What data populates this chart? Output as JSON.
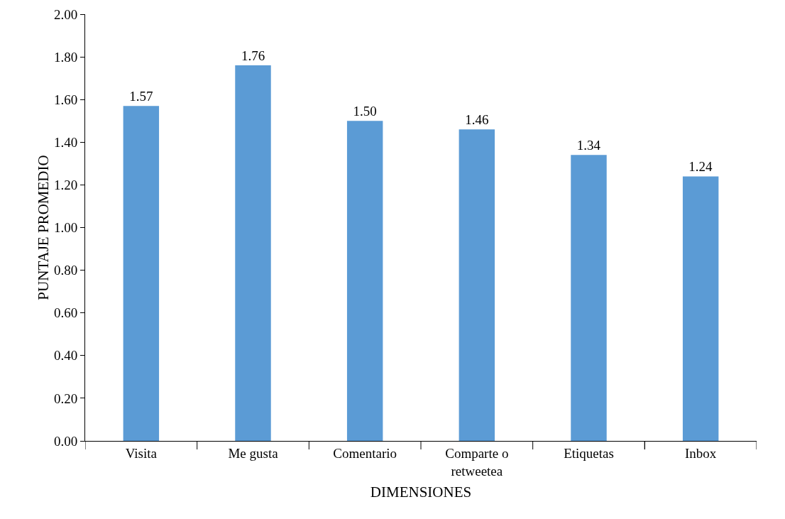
{
  "chart_data": {
    "type": "bar",
    "xlabel": "DIMENSIONES",
    "ylabel": "PUNTAJE PROMEDIO",
    "categories": [
      "Visita",
      "Me gusta",
      "Comentario",
      "Comparte o retweetea",
      "Etiquetas",
      "Inbox"
    ],
    "values": [
      1.57,
      1.76,
      1.5,
      1.46,
      1.34,
      1.24
    ],
    "value_labels": [
      "1.57",
      "1.76",
      "1.50",
      "1.46",
      "1.34",
      "1.24"
    ],
    "color": "#5b9bd5",
    "ylim": [
      0,
      2
    ],
    "yticks": [
      {
        "value": 0,
        "label": "0.00"
      },
      {
        "value": 0.2,
        "label": "0.20"
      },
      {
        "value": 0.4,
        "label": "0.40"
      },
      {
        "value": 0.6,
        "label": "0.60"
      },
      {
        "value": 0.8,
        "label": "0.80"
      },
      {
        "value": 1,
        "label": "1.00"
      },
      {
        "value": 1.2,
        "label": "1.20"
      },
      {
        "value": 1.4,
        "label": "1.40"
      },
      {
        "value": 1.6,
        "label": "1.60"
      },
      {
        "value": 1.8,
        "label": "1.80"
      },
      {
        "value": 2,
        "label": "2.00"
      }
    ]
  }
}
